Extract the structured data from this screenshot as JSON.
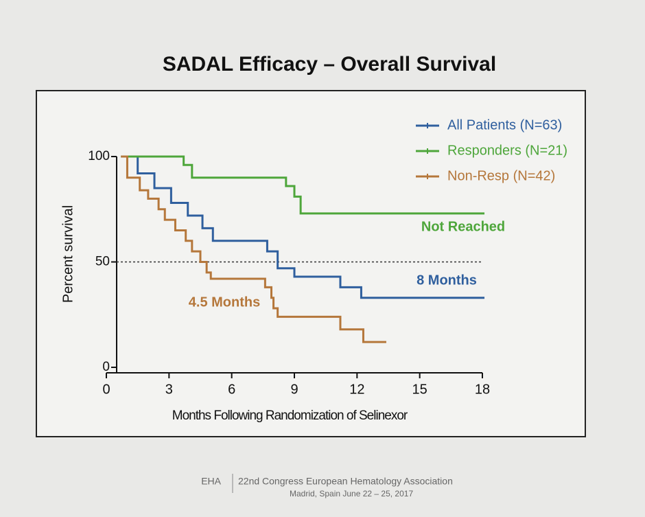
{
  "chart_data": {
    "type": "line",
    "step": true,
    "title": "SADAL Efficacy – Overall Survival",
    "x_label": "Months Following Randomization of Selinexor",
    "y_label": "Percent survival",
    "xlim": [
      0,
      18
    ],
    "xticks": [
      0,
      3,
      6,
      9,
      12,
      15,
      18
    ],
    "ylim": [
      0,
      100
    ],
    "yticks": [
      0,
      50,
      100
    ],
    "reference_line": 50,
    "legend": "top-right",
    "series": [
      {
        "name": "All Patients (N=63)",
        "color": "#2f5f9e",
        "x": [
          0.7,
          1.5,
          2.3,
          3.1,
          3.9,
          4.6,
          5.1,
          7.7,
          8.2,
          9.0,
          11.2,
          12.2,
          18.1
        ],
        "values": [
          100,
          92,
          85,
          78,
          72,
          66,
          60,
          55,
          47,
          43,
          38,
          33,
          33
        ]
      },
      {
        "name": "Responders (N=21)",
        "color": "#4ea63b",
        "x": [
          0.7,
          3.7,
          4.1,
          8.6,
          9.0,
          9.3,
          18.1
        ],
        "values": [
          100,
          96,
          90,
          86,
          81,
          73,
          73
        ]
      },
      {
        "name": "Non-Resp (N=42)",
        "color": "#b5773b",
        "x": [
          0.7,
          1.0,
          1.6,
          2.0,
          2.5,
          2.8,
          3.3,
          3.8,
          4.1,
          4.5,
          4.8,
          5.0,
          7.6,
          7.9,
          8.0,
          8.2,
          11.2,
          12.3,
          13.4
        ],
        "values": [
          100,
          90,
          84,
          80,
          75,
          70,
          65,
          60,
          55,
          50,
          45,
          42,
          38,
          33,
          28,
          24,
          18,
          12,
          12
        ]
      }
    ],
    "annotations": [
      "Not Reached",
      "8 Months",
      "4.5 Months"
    ]
  },
  "footer": {
    "org": "EHA",
    "congress": "22nd Congress European Hematology Association",
    "place": "Madrid, Spain June 22 – 25, 2017"
  }
}
